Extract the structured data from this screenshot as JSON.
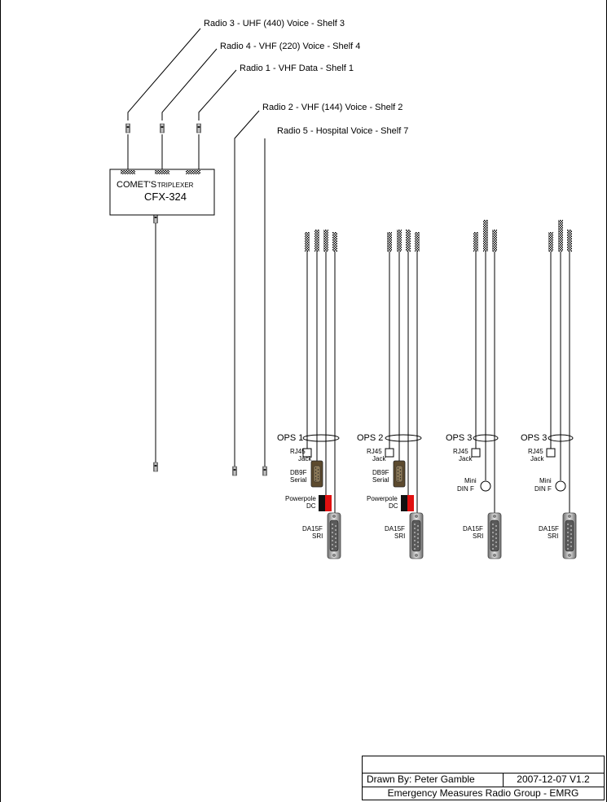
{
  "radios": {
    "radio3": "Radio 3 - UHF (440) Voice - Shelf 3",
    "radio4": "Radio 4 - VHF (220) Voice - Shelf 4",
    "radio1": "Radio 1 - VHF Data - Shelf 1",
    "radio2": "Radio 2 - VHF (144) Voice - Shelf 2",
    "radio5": "Radio 5 - Hospital Voice - Shelf 7"
  },
  "triplexer": {
    "brand": "COMET'S",
    "type": "TRIPLEXER",
    "model": "CFX-324"
  },
  "stations": [
    {
      "ops": "OPS 1",
      "rj45": [
        "RJ45",
        "Jack"
      ],
      "serial": [
        "DB9F",
        "Serial"
      ],
      "power": [
        "Powerpole",
        "DC"
      ],
      "da15": [
        "DA15F",
        "SRI"
      ]
    },
    {
      "ops": "OPS 2",
      "rj45": [
        "RJ45",
        "Jack"
      ],
      "serial": [
        "DB9F",
        "Serial"
      ],
      "power": [
        "Powerpole",
        "DC"
      ],
      "da15": [
        "DA15F",
        "SRI"
      ]
    },
    {
      "ops": "OPS 3",
      "rj45": [
        "RJ45",
        "Jack"
      ],
      "din": [
        "Mini",
        "DIN F"
      ],
      "da15": [
        "DA15F",
        "SRI"
      ]
    },
    {
      "ops": "OPS 3",
      "rj45": [
        "RJ45",
        "Jack"
      ],
      "din": [
        "Mini",
        "DIN F"
      ],
      "da15": [
        "DA15F",
        "SRI"
      ]
    }
  ],
  "titleblock": {
    "drawn_by": "Drawn By: Peter Gamble",
    "version": "2007-12-07 V1.2",
    "org": "Emergency Measures Radio Group - EMRG"
  },
  "colors": {
    "line": "#000000",
    "power_black": "#111111",
    "power_red": "#e01010",
    "connector_metal": "#b8b8b8"
  }
}
